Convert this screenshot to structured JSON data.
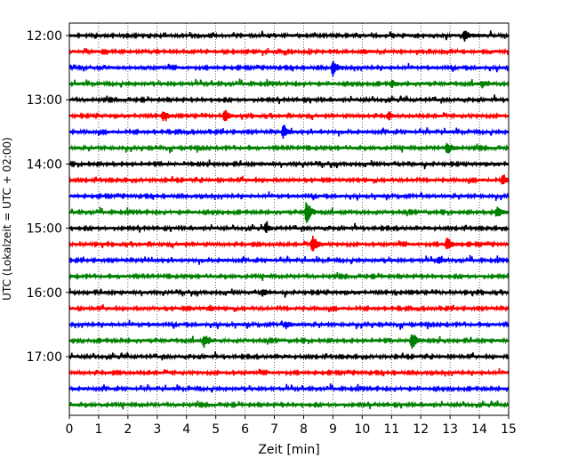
{
  "chart_data": {
    "type": "line",
    "title": "",
    "xlabel": "Zeit  [min]",
    "ylabel": "UTC (Lokalzeit = UTC + 02:00)",
    "xlim": [
      0,
      15
    ],
    "x_ticks": [
      "0",
      "1",
      "2",
      "3",
      "4",
      "5",
      "6",
      "7",
      "8",
      "9",
      "10",
      "11",
      "12",
      "13",
      "14",
      "15"
    ],
    "y_ticks": [
      "12:00",
      "13:00",
      "14:00",
      "15:00",
      "16:00",
      "17:00"
    ],
    "grid_x": true,
    "trace_interval_minutes": 15,
    "trace_colors": [
      "#000000",
      "#ff0000",
      "#0000ff",
      "#008000"
    ],
    "traces": [
      {
        "start": "12:00",
        "events": [
          {
            "t": 13.5,
            "amp": 0.35
          }
        ]
      },
      {
        "start": "12:15",
        "events": [
          {
            "t": 10.0,
            "amp": 0.15
          }
        ]
      },
      {
        "start": "12:30",
        "events": [
          {
            "t": 9.0,
            "amp": 0.55
          },
          {
            "t": 15.0,
            "amp": 0.2
          }
        ]
      },
      {
        "start": "12:45",
        "events": [
          {
            "t": 11.0,
            "amp": 0.3
          },
          {
            "t": 14.1,
            "amp": 0.25
          }
        ]
      },
      {
        "start": "13:00",
        "events": []
      },
      {
        "start": "13:15",
        "events": [
          {
            "t": 3.2,
            "amp": 0.4
          },
          {
            "t": 5.3,
            "amp": 0.45
          },
          {
            "t": 10.9,
            "amp": 0.3
          }
        ]
      },
      {
        "start": "13:30",
        "events": [
          {
            "t": 7.3,
            "amp": 0.45
          }
        ]
      },
      {
        "start": "13:45",
        "events": [
          {
            "t": 12.9,
            "amp": 0.5
          }
        ]
      },
      {
        "start": "14:00",
        "events": []
      },
      {
        "start": "14:15",
        "events": [
          {
            "t": 14.8,
            "amp": 0.45
          }
        ]
      },
      {
        "start": "14:30",
        "events": []
      },
      {
        "start": "14:45",
        "events": [
          {
            "t": 8.1,
            "amp": 0.85
          },
          {
            "t": 14.6,
            "amp": 0.4
          }
        ]
      },
      {
        "start": "15:00",
        "events": [
          {
            "t": 6.7,
            "amp": 0.3
          }
        ]
      },
      {
        "start": "15:15",
        "events": [
          {
            "t": 8.3,
            "amp": 0.7
          },
          {
            "t": 12.9,
            "amp": 0.45
          }
        ]
      },
      {
        "start": "15:30",
        "events": [
          {
            "t": 12.6,
            "amp": 0.25
          }
        ]
      },
      {
        "start": "15:45",
        "events": []
      },
      {
        "start": "16:00",
        "events": [
          {
            "t": 6.6,
            "amp": 0.25
          }
        ]
      },
      {
        "start": "16:15",
        "events": [
          {
            "t": 4.8,
            "amp": 0.2
          }
        ]
      },
      {
        "start": "16:30",
        "events": [
          {
            "t": 7.4,
            "amp": 0.25
          }
        ]
      },
      {
        "start": "16:45",
        "events": [
          {
            "t": 4.6,
            "amp": 0.5
          },
          {
            "t": 11.7,
            "amp": 0.65
          }
        ]
      },
      {
        "start": "17:00",
        "events": []
      },
      {
        "start": "17:15",
        "events": []
      },
      {
        "start": "17:30",
        "events": []
      },
      {
        "start": "17:45",
        "events": []
      }
    ]
  }
}
